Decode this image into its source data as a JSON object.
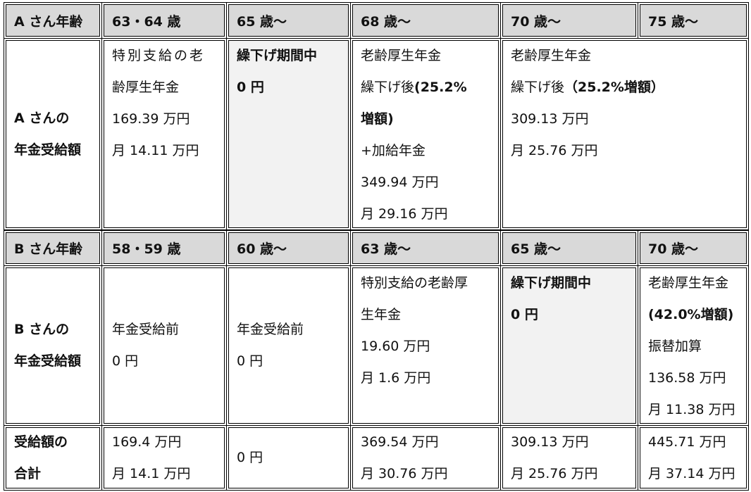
{
  "a_header": {
    "label": "A さん年齢",
    "ages": [
      "63・64 歳",
      "65 歳〜",
      "68 歳〜",
      "70 歳〜",
      "75 歳〜"
    ]
  },
  "a_row": {
    "label": [
      "A さんの",
      "年金受給額"
    ],
    "c63": [
      "特別支給の老",
      "齢厚生年金",
      "169.39 万円",
      "月 14.11 万円"
    ],
    "c65": [
      "繰下げ期間中",
      "0 円"
    ],
    "c68": {
      "l1": "老齢厚生年金",
      "l2a": "繰下げ後",
      "l2b": "(25.2%",
      "l3": "増額)",
      "l4": "+加給年金",
      "l5": "349.94 万円",
      "l6": "月 29.16 万円"
    },
    "c70": {
      "l1": "老齢厚生年金",
      "l2a": "繰下げ後",
      "l2b": "（25.2%増額）",
      "l3": "309.13 万円",
      "l4": "月 25.76 万円"
    }
  },
  "b_header": {
    "label": "B さん年齢",
    "ages": [
      "58・59 歳",
      "60 歳〜",
      "63 歳〜",
      "65 歳〜",
      "70 歳〜"
    ]
  },
  "b_row": {
    "label": [
      "B さんの",
      "年金受給額"
    ],
    "c58": [
      "年金受給前",
      "0 円"
    ],
    "c60": [
      "年金受給前",
      "0 円"
    ],
    "c63": [
      "特別支給の老齢厚",
      "生年金",
      "19.60 万円",
      "月 1.6 万円"
    ],
    "c65": [
      "繰下げ期間中",
      "0 円"
    ],
    "c70": [
      "老齢厚生年金",
      "(42.0%増額)",
      "振替加算",
      "136.58 万円",
      "月 11.38 万円"
    ]
  },
  "total": {
    "label": [
      "受給額の",
      "合計"
    ],
    "c1": [
      "169.4 万円",
      "月 14.1 万円"
    ],
    "c2": "0 円",
    "c3": [
      "369.54 万円",
      "月 30.76 万円"
    ],
    "c4": [
      "309.13 万円",
      "月 25.76 万円"
    ],
    "c5": [
      "445.71 万円",
      "月 37.14 万円"
    ]
  },
  "colors": {
    "header_bg": "#d9d9d9",
    "deferred_bg": "#f2f2f2"
  }
}
